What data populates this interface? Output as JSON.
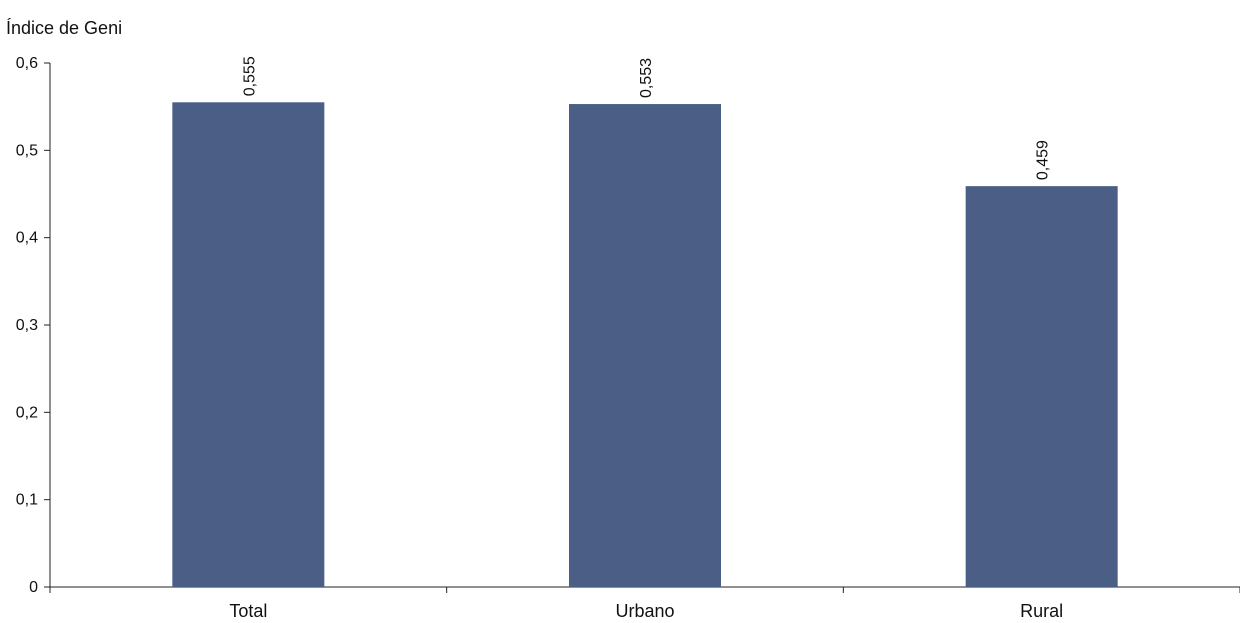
{
  "chart_data": {
    "type": "bar",
    "title": "",
    "xlabel": "",
    "ylabel": "Índice de Geni",
    "categories": [
      "Total",
      "Urbano",
      "Rural"
    ],
    "values": [
      0.555,
      0.553,
      0.459
    ],
    "data_labels": [
      "0,555",
      "0,553",
      "0,459"
    ],
    "ylim": [
      0,
      0.6
    ],
    "yticks": [
      0,
      0.1,
      0.2,
      0.3,
      0.4,
      0.5,
      0.6
    ],
    "ytick_labels": [
      "0",
      "0,1",
      "0,2",
      "0,3",
      "0,4",
      "0,5",
      "0,6"
    ],
    "grid": false,
    "legend": "none",
    "bar_color": "#4a5e86"
  }
}
